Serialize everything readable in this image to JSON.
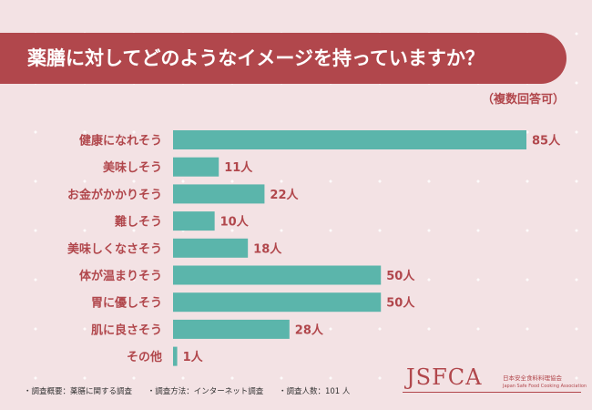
{
  "title": "薬膳に対してどのようなイメージを持っていますか？",
  "note": "（複数回答可）",
  "colors": {
    "banner": "#b1474c",
    "bar": "#5bb5ab",
    "text": "#b1474c",
    "background": "#f3e2e4"
  },
  "chart_data": {
    "type": "bar",
    "orientation": "horizontal",
    "categories": [
      "健康になれそう",
      "美味しそう",
      "お金がかかりそう",
      "難しそう",
      "美味しくなさそう",
      "体が温まりそう",
      "胃に優しそう",
      "肌に良さそう",
      "その他"
    ],
    "values": [
      85,
      11,
      22,
      10,
      18,
      50,
      50,
      28,
      1
    ],
    "value_labels": [
      "85人",
      "11人",
      "22人",
      "10人",
      "18人",
      "50人",
      "50人",
      "28人",
      "1人"
    ],
    "unit": "人",
    "xlim": [
      0,
      85
    ],
    "grid": false,
    "legend": false
  },
  "footer": {
    "items": [
      "・調査概要：薬膳に関する調査",
      "・調査方法：インターネット調査",
      "・調査人数：101 人"
    ]
  },
  "logo": {
    "mark": "JSFCA",
    "name_ja": "日本安全食料料理協会",
    "name_en": "Japan Safe Food Cooking Association"
  }
}
